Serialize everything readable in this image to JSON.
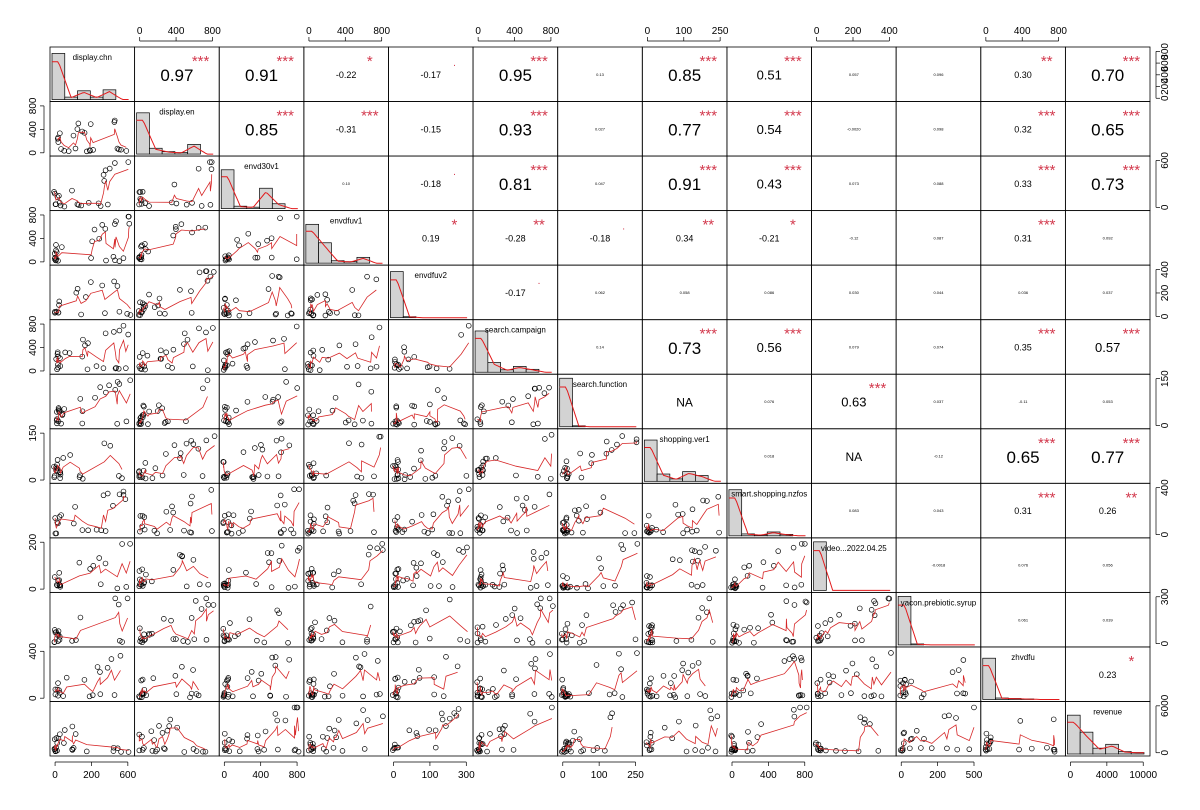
{
  "chart_data": {
    "type": "scatter",
    "subtype": "correlation-matrix",
    "variables": [
      "display.chn",
      "display.en",
      "envd30v1",
      "envdfuv1",
      "envdfuv2",
      "search.campaign",
      "search.function",
      "shopping.ver1",
      "smart.shopping.nzfos",
      "video...2022.04.25",
      "yacon.prebiotic.syrup",
      "zhvdfu",
      "revenue"
    ],
    "axes": {
      "top": [
        {
          "column": 1,
          "ticks": [
            "0",
            "400",
            "800"
          ]
        },
        {
          "column": 3,
          "ticks": [
            "0",
            "400",
            "800"
          ]
        },
        {
          "column": 5,
          "ticks": [
            "0",
            "400",
            "800"
          ]
        },
        {
          "column": 7,
          "ticks": [
            "0",
            "100",
            "250"
          ]
        },
        {
          "column": 9,
          "ticks": [
            "0",
            "200",
            "400"
          ]
        },
        {
          "column": 11,
          "ticks": [
            "0",
            "400",
            "800"
          ]
        }
      ],
      "bottom": [
        {
          "column": 0,
          "ticks": [
            "0",
            "200",
            "600"
          ]
        },
        {
          "column": 2,
          "ticks": [
            "0",
            "400",
            "800"
          ]
        },
        {
          "column": 4,
          "ticks": [
            "0",
            "100",
            "300"
          ]
        },
        {
          "column": 6,
          "ticks": [
            "0",
            "100",
            "250"
          ]
        },
        {
          "column": 8,
          "ticks": [
            "0",
            "400",
            "800"
          ]
        },
        {
          "column": 10,
          "ticks": [
            "0",
            "200",
            "500"
          ]
        },
        {
          "column": 12,
          "ticks": [
            "0",
            "4000",
            "10000"
          ]
        }
      ],
      "left": [
        {
          "row": 1,
          "ticks": [
            "0",
            "400",
            "800"
          ]
        },
        {
          "row": 3,
          "ticks": [
            "0",
            "400",
            "800"
          ]
        },
        {
          "row": 5,
          "ticks": [
            "0",
            "400",
            "800"
          ]
        },
        {
          "row": 7,
          "ticks": [
            "0",
            "150"
          ]
        },
        {
          "row": 9,
          "ticks": [
            "0",
            "200"
          ]
        },
        {
          "row": 11,
          "ticks": [
            "0",
            "400"
          ]
        }
      ],
      "right": [
        {
          "row": 0,
          "ticks": [
            "0",
            "200",
            "400",
            "600",
            "800"
          ]
        },
        {
          "row": 2,
          "ticks": [
            "0",
            "600"
          ]
        },
        {
          "row": 4,
          "ticks": [
            "0",
            "200",
            "400"
          ]
        },
        {
          "row": 6,
          "ticks": [
            "0",
            "150"
          ]
        },
        {
          "row": 8,
          "ticks": [
            "0",
            "400"
          ]
        },
        {
          "row": 10,
          "ticks": [
            "0",
            "300"
          ]
        },
        {
          "row": 12,
          "ticks": [
            "0",
            "6000"
          ]
        }
      ]
    },
    "correlations": [
      {
        "row": 0,
        "col": 1,
        "value": "0.97",
        "stars": "***"
      },
      {
        "row": 0,
        "col": 2,
        "value": "0.91",
        "stars": "***"
      },
      {
        "row": 0,
        "col": 3,
        "value": "-0.22",
        "stars": "*"
      },
      {
        "row": 0,
        "col": 4,
        "value": "-0.17",
        "stars": "."
      },
      {
        "row": 0,
        "col": 5,
        "value": "0.95",
        "stars": "***"
      },
      {
        "row": 0,
        "col": 6,
        "value": "0.13",
        "stars": ""
      },
      {
        "row": 0,
        "col": 7,
        "value": "0.85",
        "stars": "***"
      },
      {
        "row": 0,
        "col": 8,
        "value": "0.51",
        "stars": "***"
      },
      {
        "row": 0,
        "col": 9,
        "value": "0.057",
        "stars": ""
      },
      {
        "row": 0,
        "col": 10,
        "value": "0.096",
        "stars": ""
      },
      {
        "row": 0,
        "col": 11,
        "value": "0.30",
        "stars": "**"
      },
      {
        "row": 0,
        "col": 12,
        "value": "0.70",
        "stars": "***"
      },
      {
        "row": 1,
        "col": 2,
        "value": "0.85",
        "stars": "***"
      },
      {
        "row": 1,
        "col": 3,
        "value": "-0.31",
        "stars": "***"
      },
      {
        "row": 1,
        "col": 4,
        "value": "-0.15",
        "stars": ""
      },
      {
        "row": 1,
        "col": 5,
        "value": "0.93",
        "stars": "***"
      },
      {
        "row": 1,
        "col": 6,
        "value": "0.027",
        "stars": ""
      },
      {
        "row": 1,
        "col": 7,
        "value": "0.77",
        "stars": "***"
      },
      {
        "row": 1,
        "col": 8,
        "value": "0.54",
        "stars": "***"
      },
      {
        "row": 1,
        "col": 9,
        "value": "-0.0020",
        "stars": ""
      },
      {
        "row": 1,
        "col": 10,
        "value": "0.098",
        "stars": ""
      },
      {
        "row": 1,
        "col": 11,
        "value": "0.32",
        "stars": "***"
      },
      {
        "row": 1,
        "col": 12,
        "value": "0.65",
        "stars": "***"
      },
      {
        "row": 2,
        "col": 3,
        "value": "0.10",
        "stars": ""
      },
      {
        "row": 2,
        "col": 4,
        "value": "-0.18",
        "stars": "."
      },
      {
        "row": 2,
        "col": 5,
        "value": "0.81",
        "stars": "***"
      },
      {
        "row": 2,
        "col": 6,
        "value": "0.047",
        "stars": ""
      },
      {
        "row": 2,
        "col": 7,
        "value": "0.91",
        "stars": "***"
      },
      {
        "row": 2,
        "col": 8,
        "value": "0.43",
        "stars": "***"
      },
      {
        "row": 2,
        "col": 9,
        "value": "0.073",
        "stars": ""
      },
      {
        "row": 2,
        "col": 10,
        "value": "0.088",
        "stars": ""
      },
      {
        "row": 2,
        "col": 11,
        "value": "0.33",
        "stars": "***"
      },
      {
        "row": 2,
        "col": 12,
        "value": "0.73",
        "stars": "***"
      },
      {
        "row": 3,
        "col": 4,
        "value": "0.19",
        "stars": "*"
      },
      {
        "row": 3,
        "col": 5,
        "value": "-0.28",
        "stars": "**"
      },
      {
        "row": 3,
        "col": 6,
        "value": "-0.18",
        "stars": "."
      },
      {
        "row": 3,
        "col": 7,
        "value": "0.34",
        "stars": "**"
      },
      {
        "row": 3,
        "col": 8,
        "value": "-0.21",
        "stars": "*"
      },
      {
        "row": 3,
        "col": 9,
        "value": "-0.12",
        "stars": ""
      },
      {
        "row": 3,
        "col": 10,
        "value": "0.087",
        "stars": ""
      },
      {
        "row": 3,
        "col": 11,
        "value": "0.31",
        "stars": "***"
      },
      {
        "row": 3,
        "col": 12,
        "value": "0.092",
        "stars": ""
      },
      {
        "row": 4,
        "col": 5,
        "value": "-0.17",
        "stars": "."
      },
      {
        "row": 4,
        "col": 6,
        "value": "0.062",
        "stars": ""
      },
      {
        "row": 4,
        "col": 7,
        "value": "0.058",
        "stars": ""
      },
      {
        "row": 4,
        "col": 8,
        "value": "0.086",
        "stars": ""
      },
      {
        "row": 4,
        "col": 9,
        "value": "0.030",
        "stars": ""
      },
      {
        "row": 4,
        "col": 10,
        "value": "0.044",
        "stars": ""
      },
      {
        "row": 4,
        "col": 11,
        "value": "0.036",
        "stars": ""
      },
      {
        "row": 4,
        "col": 12,
        "value": "0.037",
        "stars": ""
      },
      {
        "row": 5,
        "col": 6,
        "value": "0.14",
        "stars": ""
      },
      {
        "row": 5,
        "col": 7,
        "value": "0.73",
        "stars": "***"
      },
      {
        "row": 5,
        "col": 8,
        "value": "0.56",
        "stars": "***"
      },
      {
        "row": 5,
        "col": 9,
        "value": "0.079",
        "stars": ""
      },
      {
        "row": 5,
        "col": 10,
        "value": "0.074",
        "stars": ""
      },
      {
        "row": 5,
        "col": 11,
        "value": "0.35",
        "stars": "***"
      },
      {
        "row": 5,
        "col": 12,
        "value": "0.57",
        "stars": "***"
      },
      {
        "row": 6,
        "col": 7,
        "value": "NA",
        "stars": ""
      },
      {
        "row": 6,
        "col": 8,
        "value": "0.076",
        "stars": ""
      },
      {
        "row": 6,
        "col": 9,
        "value": "0.63",
        "stars": "***"
      },
      {
        "row": 6,
        "col": 10,
        "value": "0.037",
        "stars": ""
      },
      {
        "row": 6,
        "col": 11,
        "value": "-0.11",
        "stars": ""
      },
      {
        "row": 6,
        "col": 12,
        "value": "0.053",
        "stars": ""
      },
      {
        "row": 7,
        "col": 8,
        "value": "0.018",
        "stars": ""
      },
      {
        "row": 7,
        "col": 9,
        "value": "NA",
        "stars": ""
      },
      {
        "row": 7,
        "col": 10,
        "value": "-0.12",
        "stars": ""
      },
      {
        "row": 7,
        "col": 11,
        "value": "0.65",
        "stars": "***"
      },
      {
        "row": 7,
        "col": 12,
        "value": "0.77",
        "stars": "***"
      },
      {
        "row": 8,
        "col": 9,
        "value": "0.083",
        "stars": ""
      },
      {
        "row": 8,
        "col": 10,
        "value": "0.043",
        "stars": ""
      },
      {
        "row": 8,
        "col": 11,
        "value": "0.31",
        "stars": "***"
      },
      {
        "row": 8,
        "col": 12,
        "value": "0.26",
        "stars": "**"
      },
      {
        "row": 9,
        "col": 10,
        "value": "-0.0018",
        "stars": ""
      },
      {
        "row": 9,
        "col": 11,
        "value": "0.076",
        "stars": ""
      },
      {
        "row": 9,
        "col": 12,
        "value": "0.056",
        "stars": ""
      },
      {
        "row": 10,
        "col": 11,
        "value": "0.061",
        "stars": ""
      },
      {
        "row": 10,
        "col": 12,
        "value": "0.039",
        "stars": ""
      },
      {
        "row": 11,
        "col": 12,
        "value": "0.23",
        "stars": "*"
      }
    ],
    "diagonal_histograms": [
      [
        0.95,
        0.05,
        0.18,
        0.05,
        0.2,
        0
      ],
      [
        0.85,
        0.12,
        0.05,
        0.03,
        0.2,
        0
      ],
      [
        0.8,
        0.05,
        0.03,
        0.42,
        0.1,
        0
      ],
      [
        0.8,
        0.42,
        0.05,
        0.03,
        0.12,
        0
      ],
      [
        0.95,
        0.02,
        0,
        0,
        0,
        0
      ],
      [
        0.85,
        0.2,
        0.05,
        0.12,
        0.06,
        0
      ],
      [
        1.0,
        0.02,
        0,
        0,
        0,
        0
      ],
      [
        0.85,
        0.15,
        0.05,
        0.2,
        0.12,
        0
      ],
      [
        0.95,
        0.04,
        0.02,
        0.08,
        0.03,
        0
      ],
      [
        1.0,
        0,
        0,
        0,
        0,
        0
      ],
      [
        1.0,
        0.02,
        0,
        0,
        0,
        0
      ],
      [
        0.85,
        0.03,
        0.02,
        0.01,
        0,
        0
      ],
      [
        0.8,
        0.45,
        0.12,
        0.2,
        0.05,
        0.03
      ]
    ],
    "colors": {
      "points": "#000000",
      "smoother": "#d62728",
      "stars": "#d33a4e",
      "hist_fill": "#d3d3d3",
      "density": "#e31a1c"
    }
  }
}
